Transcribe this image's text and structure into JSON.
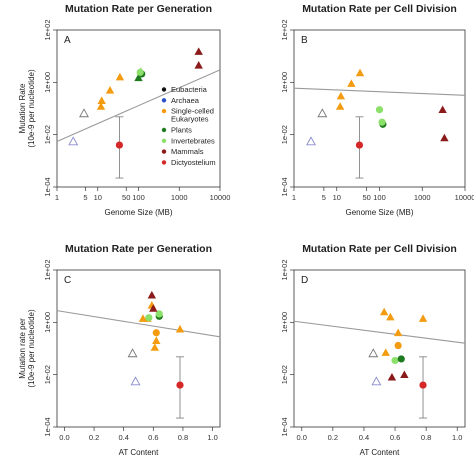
{
  "legend": [
    {
      "label": "Eubacteria",
      "color": "#111111"
    },
    {
      "label": "Archaea",
      "color": "#2b50c8"
    },
    {
      "label": "Single-celled\nEukaryotes",
      "color": "#f39c12"
    },
    {
      "label": "Plants",
      "color": "#1e7a1e"
    },
    {
      "label": "Invertebrates",
      "color": "#8be06a"
    },
    {
      "label": "Mammals",
      "color": "#8b1a1a"
    },
    {
      "label": "Dictyostelium",
      "color": "#d62728"
    }
  ],
  "chart_data": [
    {
      "type": "scatter",
      "panel_label": "A",
      "title": "Mutation Rate per Generation",
      "xlabel": "Genome Size (MB)",
      "ylabel": "Mutation Rate\n(10e-9 per nucleotide)",
      "xscale": "log",
      "yscale": "log",
      "xlim": [
        1,
        10000
      ],
      "ylim": [
        0.0001,
        100
      ],
      "xticks": [
        "1",
        "5",
        "10",
        "50",
        "100",
        "1000",
        "10000"
      ],
      "yticks": [
        "1e-04",
        "1e-02",
        "1e+00",
        "1e+02"
      ],
      "regression": {
        "x": [
          1,
          10000
        ],
        "y": [
          0.0055,
          3.0
        ]
      },
      "points": [
        {
          "x": 4.6,
          "y": 0.065,
          "shape": "triangle-open",
          "color": "#777777"
        },
        {
          "x": 2.5,
          "y": 0.0055,
          "shape": "triangle-open",
          "color": "#8a8ad0"
        },
        {
          "x": 12,
          "y": 0.12,
          "shape": "triangle",
          "color": "#f39c12"
        },
        {
          "x": 12.5,
          "y": 0.2,
          "shape": "triangle",
          "color": "#f39c12"
        },
        {
          "x": 20,
          "y": 0.5,
          "shape": "triangle",
          "color": "#f39c12"
        },
        {
          "x": 35,
          "y": 1.6,
          "shape": "triangle",
          "color": "#f39c12"
        },
        {
          "x": 100,
          "y": 1.5,
          "shape": "triangle",
          "color": "#1e7a1e"
        },
        {
          "x": 115,
          "y": 2.6,
          "shape": "triangle",
          "color": "#8be06a"
        },
        {
          "x": 120,
          "y": 2.1,
          "shape": "circle",
          "color": "#1e7a1e"
        },
        {
          "x": 110,
          "y": 2.4,
          "shape": "circle",
          "color": "#8be06a"
        },
        {
          "x": 3000,
          "y": 15,
          "shape": "triangle",
          "color": "#8b1a1a"
        },
        {
          "x": 3000,
          "y": 4.5,
          "shape": "triangle",
          "color": "#8b1a1a"
        },
        {
          "x": 34,
          "y": 0.004,
          "shape": "circle",
          "color": "#d62728",
          "err": [
            0.00022,
            0.048
          ]
        }
      ]
    },
    {
      "type": "scatter",
      "panel_label": "B",
      "title": "Mutation Rate per Cell Division",
      "xlabel": "Genome Size (MB)",
      "ylabel": "",
      "xscale": "log",
      "yscale": "log",
      "xlim": [
        1,
        10000
      ],
      "ylim": [
        0.0001,
        100
      ],
      "xticks": [
        "1",
        "5",
        "10",
        "50",
        "100",
        "1000",
        "10000"
      ],
      "yticks": [
        "1e-04",
        "1e-02",
        "1e+00",
        "1e+02"
      ],
      "regression": {
        "x": [
          1,
          10000
        ],
        "y": [
          0.6,
          0.32
        ]
      },
      "points": [
        {
          "x": 4.6,
          "y": 0.065,
          "shape": "triangle-open",
          "color": "#777777"
        },
        {
          "x": 2.5,
          "y": 0.0055,
          "shape": "triangle-open",
          "color": "#8a8ad0"
        },
        {
          "x": 12,
          "y": 0.12,
          "shape": "triangle",
          "color": "#f39c12"
        },
        {
          "x": 12.5,
          "y": 0.3,
          "shape": "triangle",
          "color": "#f39c12"
        },
        {
          "x": 22,
          "y": 0.9,
          "shape": "triangle",
          "color": "#f39c12"
        },
        {
          "x": 35,
          "y": 2.3,
          "shape": "triangle",
          "color": "#f39c12"
        },
        {
          "x": 100,
          "y": 0.09,
          "shape": "circle",
          "color": "#8be06a"
        },
        {
          "x": 120,
          "y": 0.025,
          "shape": "circle",
          "color": "#1e7a1e"
        },
        {
          "x": 115,
          "y": 0.03,
          "shape": "circle",
          "color": "#8be06a"
        },
        {
          "x": 3000,
          "y": 0.09,
          "shape": "triangle",
          "color": "#8b1a1a"
        },
        {
          "x": 3300,
          "y": 0.0075,
          "shape": "triangle",
          "color": "#8b1a1a"
        },
        {
          "x": 34,
          "y": 0.004,
          "shape": "circle",
          "color": "#d62728",
          "err": [
            0.00022,
            0.048
          ]
        }
      ]
    },
    {
      "type": "scatter",
      "panel_label": "C",
      "title": "Mutation Rate per Generation",
      "xlabel": "AT Content",
      "ylabel": "Mutation rate per\n(10e-9 per nucleotide)",
      "xscale": "linear",
      "yscale": "log",
      "xlim": [
        -0.05,
        1.05
      ],
      "ylim": [
        0.0001,
        100
      ],
      "xticks": [
        "0.0",
        "0.2",
        "0.4",
        "0.6",
        "0.8",
        "1.0"
      ],
      "yticks": [
        "1e-04",
        "1e-02",
        "1e+00",
        "1e+02"
      ],
      "regression": {
        "x": [
          -0.05,
          1.05
        ],
        "y": [
          2.8,
          0.28
        ]
      },
      "points": [
        {
          "x": 0.46,
          "y": 0.065,
          "shape": "triangle-open",
          "color": "#777777"
        },
        {
          "x": 0.48,
          "y": 0.0055,
          "shape": "triangle-open",
          "color": "#8a8ad0"
        },
        {
          "x": 0.53,
          "y": 1.4,
          "shape": "triangle",
          "color": "#f39c12"
        },
        {
          "x": 0.56,
          "y": 1.4,
          "shape": "triangle",
          "color": "#f39c12"
        },
        {
          "x": 0.59,
          "y": 4.5,
          "shape": "triangle",
          "color": "#f39c12"
        },
        {
          "x": 0.61,
          "y": 0.11,
          "shape": "triangle",
          "color": "#f39c12"
        },
        {
          "x": 0.62,
          "y": 0.2,
          "shape": "triangle",
          "color": "#f39c12"
        },
        {
          "x": 0.62,
          "y": 0.4,
          "shape": "circle",
          "color": "#f39c12"
        },
        {
          "x": 0.57,
          "y": 1.5,
          "shape": "circle",
          "color": "#8be06a"
        },
        {
          "x": 0.64,
          "y": 1.7,
          "shape": "circle",
          "color": "#1e7a1e"
        },
        {
          "x": 0.64,
          "y": 2.1,
          "shape": "circle",
          "color": "#8be06a"
        },
        {
          "x": 0.6,
          "y": 3.4,
          "shape": "triangle",
          "color": "#8b1a1a"
        },
        {
          "x": 0.59,
          "y": 11,
          "shape": "triangle",
          "color": "#8b1a1a"
        },
        {
          "x": 0.78,
          "y": 0.55,
          "shape": "triangle",
          "color": "#f39c12"
        },
        {
          "x": 0.78,
          "y": 0.004,
          "shape": "circle",
          "color": "#d62728",
          "err": [
            0.00022,
            0.048
          ]
        }
      ]
    },
    {
      "type": "scatter",
      "panel_label": "D",
      "title": "Mutation Rate per Cell Division",
      "xlabel": "AT Content",
      "ylabel": "",
      "xscale": "linear",
      "yscale": "log",
      "xlim": [
        -0.05,
        1.05
      ],
      "ylim": [
        0.0001,
        100
      ],
      "xticks": [
        "0.0",
        "0.2",
        "0.4",
        "0.6",
        "0.8",
        "1.0"
      ],
      "yticks": [
        "1e-04",
        "1e-02",
        "1e+00",
        "1e+02"
      ],
      "regression": {
        "x": [
          -0.05,
          1.05
        ],
        "y": [
          1.1,
          0.16
        ]
      },
      "points": [
        {
          "x": 0.46,
          "y": 0.065,
          "shape": "triangle-open",
          "color": "#777777"
        },
        {
          "x": 0.48,
          "y": 0.0055,
          "shape": "triangle-open",
          "color": "#8a8ad0"
        },
        {
          "x": 0.53,
          "y": 2.5,
          "shape": "triangle",
          "color": "#f39c12"
        },
        {
          "x": 0.57,
          "y": 1.6,
          "shape": "triangle",
          "color": "#f39c12"
        },
        {
          "x": 0.62,
          "y": 0.4,
          "shape": "triangle",
          "color": "#f39c12"
        },
        {
          "x": 0.54,
          "y": 0.07,
          "shape": "triangle",
          "color": "#f39c12"
        },
        {
          "x": 0.62,
          "y": 0.13,
          "shape": "circle",
          "color": "#f39c12"
        },
        {
          "x": 0.6,
          "y": 0.035,
          "shape": "circle",
          "color": "#8be06a"
        },
        {
          "x": 0.64,
          "y": 0.04,
          "shape": "circle",
          "color": "#1e7a1e"
        },
        {
          "x": 0.58,
          "y": 0.008,
          "shape": "triangle",
          "color": "#8b1a1a"
        },
        {
          "x": 0.66,
          "y": 0.01,
          "shape": "triangle",
          "color": "#8b1a1a"
        },
        {
          "x": 0.78,
          "y": 1.4,
          "shape": "triangle",
          "color": "#f39c12"
        },
        {
          "x": 0.78,
          "y": 0.004,
          "shape": "circle",
          "color": "#d62728",
          "err": [
            0.00022,
            0.048
          ]
        }
      ]
    }
  ]
}
